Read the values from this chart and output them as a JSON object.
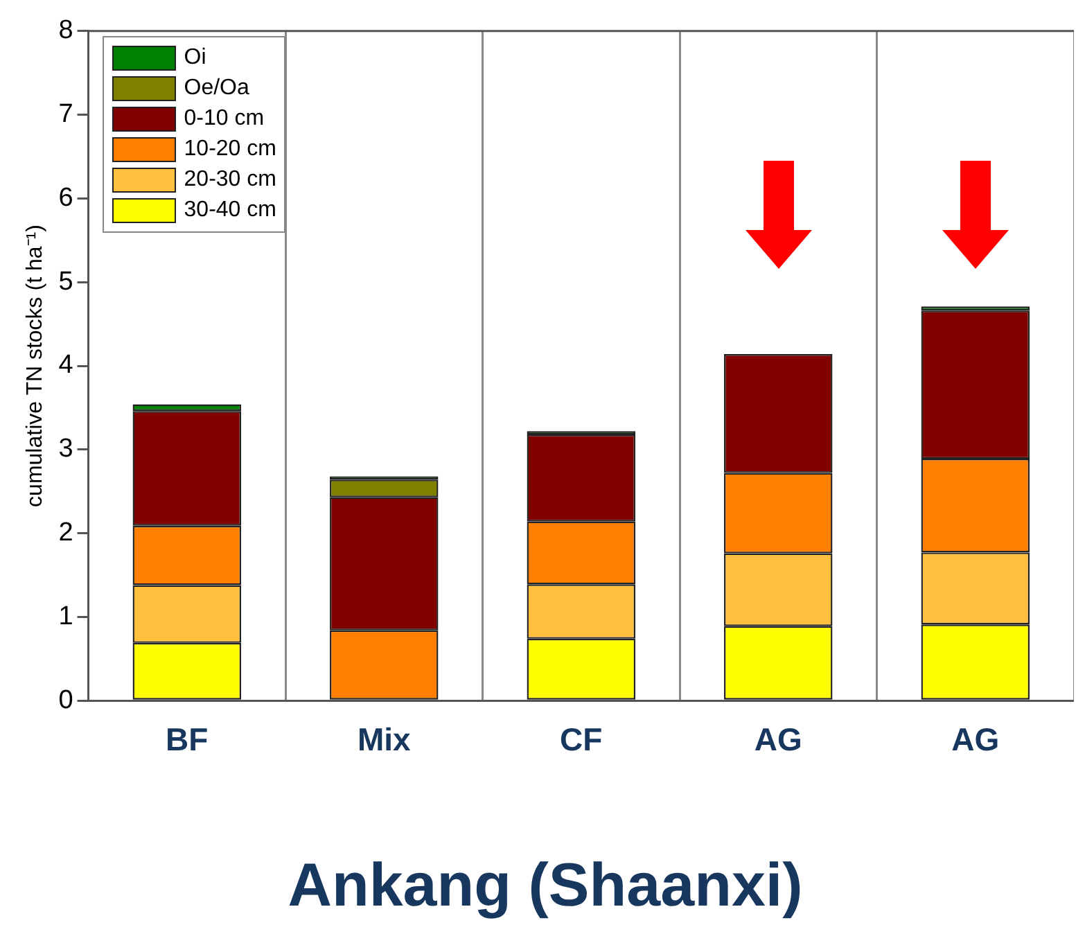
{
  "chart_data": {
    "type": "bar",
    "stacked": true,
    "title": "Ankang (Shaanxi)",
    "ylabel": "cumulative TN stocks (t ha⁻¹)",
    "categories": [
      "BF",
      "Mix",
      "CF",
      "AG",
      "AG"
    ],
    "series": [
      {
        "name": "30-40 cm",
        "color": "#ffff00",
        "values": [
          0.69,
          0,
          0.74,
          0.89,
          0.91
        ]
      },
      {
        "name": "20-30 cm",
        "color": "#ffc040",
        "values": [
          0.69,
          0,
          0.65,
          0.87,
          0.86
        ]
      },
      {
        "name": "10-20 cm",
        "color": "#ff8000",
        "values": [
          0.71,
          0.84,
          0.75,
          0.96,
          1.12
        ]
      },
      {
        "name": "0-10 cm",
        "color": "#800000",
        "values": [
          1.37,
          1.59,
          1.04,
          1.42,
          1.77
        ]
      },
      {
        "name": "Oe/Oa",
        "color": "#808000",
        "values": [
          0,
          0.21,
          0,
          0,
          0
        ]
      },
      {
        "name": "Oi",
        "color": "#008000",
        "values": [
          0.08,
          0.04,
          0.04,
          0,
          0.05
        ]
      }
    ],
    "ylim": [
      0,
      8
    ],
    "yticks": [
      0,
      1,
      2,
      3,
      4,
      5,
      6,
      7,
      8
    ],
    "grid": "x",
    "legend": "top left"
  }
}
